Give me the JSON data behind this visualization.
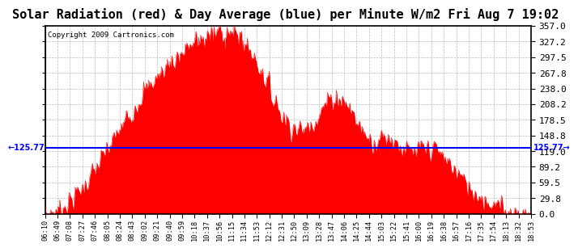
{
  "title": "Solar Radiation (red) & Day Average (blue) per Minute W/m2 Fri Aug 7 19:02",
  "copyright": "Copyright 2009 Cartronics.com",
  "avg_value": 125.77,
  "ylim": [
    0.0,
    357.0
  ],
  "yticks": [
    0.0,
    29.8,
    59.5,
    89.2,
    119.0,
    148.8,
    178.5,
    208.2,
    238.0,
    267.8,
    297.5,
    327.2,
    357.0
  ],
  "fill_color": "#FF0000",
  "line_color": "#0000FF",
  "bg_color": "#FFFFFF",
  "grid_color": "#AAAAAA",
  "title_fontsize": 11,
  "xtick_labels": [
    "06:10",
    "06:49",
    "07:08",
    "07:27",
    "07:46",
    "08:05",
    "08:24",
    "08:43",
    "09:02",
    "09:21",
    "09:40",
    "09:59",
    "10:18",
    "10:37",
    "10:56",
    "11:15",
    "11:34",
    "11:53",
    "12:12",
    "12:31",
    "12:50",
    "13:09",
    "13:28",
    "13:47",
    "14:06",
    "14:25",
    "14:44",
    "15:03",
    "15:22",
    "15:41",
    "16:00",
    "16:19",
    "16:38",
    "16:57",
    "17:16",
    "17:35",
    "17:54",
    "18:13",
    "18:32",
    "18:53"
  ]
}
